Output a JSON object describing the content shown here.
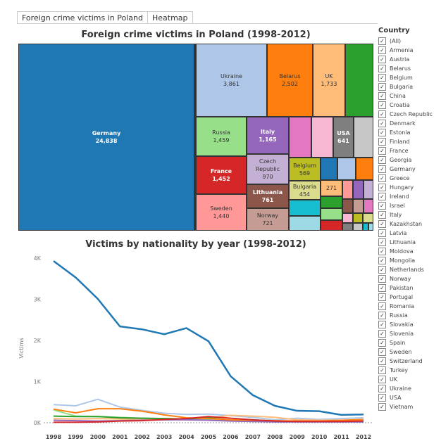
{
  "tabs": [
    "Foreign crime victims in Poland",
    "Heatmap"
  ],
  "treemap": {
    "title": "Foreign crime victims in Poland (1998-2012)",
    "cells": [
      {
        "name": "Germany",
        "value": "24,838"
      },
      {
        "name": "Ukraine",
        "value": "3,861"
      },
      {
        "name": "Belarus",
        "value": "2,502"
      },
      {
        "name": "UK",
        "value": "1,733"
      },
      {
        "name": "Russia",
        "value": "1,459"
      },
      {
        "name": "Italy",
        "value": "1,165"
      },
      {
        "name": "USA",
        "value": "641"
      },
      {
        "name": "France",
        "value": "1,452"
      },
      {
        "name": "Czech Republic",
        "value": "970"
      },
      {
        "name": "Belgium",
        "value": "569"
      },
      {
        "name": "Sweden",
        "value": "1,440"
      },
      {
        "name": "Lithuania",
        "value": "761"
      },
      {
        "name": "Bulgaria",
        "value": "454"
      },
      {
        "name": "Norway",
        "value": "721"
      },
      {
        "name": "",
        "value": "271"
      }
    ]
  },
  "legend": {
    "title": "Country",
    "items": [
      "(All)",
      "Armenia",
      "Austria",
      "Belarus",
      "Belgium",
      "Bulgaria",
      "China",
      "Croatia",
      "Czech Republic",
      "Denmark",
      "Estonia",
      "Finland",
      "France",
      "Georgia",
      "Germany",
      "Greece",
      "Hungary",
      "Ireland",
      "Israel",
      "Italy",
      "Kazakhstan",
      "Latvia",
      "Lithuania",
      "Moldova",
      "Mongolia",
      "Netherlands",
      "Norway",
      "Pakistan",
      "Portugal",
      "Romania",
      "Russia",
      "Slovakia",
      "Slovenia",
      "Spain",
      "Sweden",
      "Switzerland",
      "Turkey",
      "UK",
      "Ukraine",
      "USA",
      "Vietnam"
    ]
  },
  "chart_data": {
    "type": "line",
    "title": "Victims by nationality by year (1998-2012)",
    "xlabel": "",
    "ylabel": "Victims",
    "x": [
      1998,
      1999,
      2000,
      2001,
      2002,
      2003,
      2004,
      2005,
      2006,
      2007,
      2008,
      2009,
      2010,
      2011,
      2012
    ],
    "yticks": [
      "0K",
      "1K",
      "2K",
      "3K",
      "4K"
    ],
    "ylim": [
      0,
      4000
    ],
    "series": [
      {
        "color": "#aec7e8",
        "values": [
          440,
          410,
          570,
          380,
          300,
          230,
          200,
          210,
          170,
          130,
          70,
          110,
          80,
          100,
          120
        ]
      },
      {
        "color": "#ffbb78",
        "values": [
          100,
          90,
          100,
          90,
          80,
          70,
          100,
          110,
          180,
          160,
          130,
          70,
          60,
          60,
          70
        ]
      },
      {
        "color": "#98df8a",
        "values": [
          310,
          160,
          150,
          130,
          110,
          100,
          90,
          80,
          60,
          50,
          40,
          40,
          30,
          30,
          30
        ]
      },
      {
        "color": "#2ca02c",
        "values": [
          160,
          150,
          150,
          120,
          110,
          100,
          90,
          120,
          60,
          70,
          40,
          30,
          30,
          30,
          30
        ]
      },
      {
        "color": "#9467bd",
        "values": [
          60,
          50,
          40,
          50,
          60,
          70,
          70,
          60,
          40,
          30,
          20,
          20,
          20,
          20,
          20
        ]
      },
      {
        "color": "#ff7f0e",
        "values": [
          330,
          240,
          340,
          340,
          280,
          190,
          120,
          100,
          70,
          60,
          50,
          40,
          40,
          60,
          80
        ]
      },
      {
        "color": "#d62728",
        "values": [
          10,
          10,
          20,
          40,
          50,
          80,
          100,
          150,
          110,
          70,
          40,
          30,
          30,
          30,
          40
        ]
      },
      {
        "color": "#1f77b4",
        "values": [
          3930,
          3530,
          3010,
          2340,
          2270,
          2150,
          2300,
          1980,
          1130,
          670,
          410,
          290,
          280,
          190,
          200
        ]
      }
    ]
  }
}
